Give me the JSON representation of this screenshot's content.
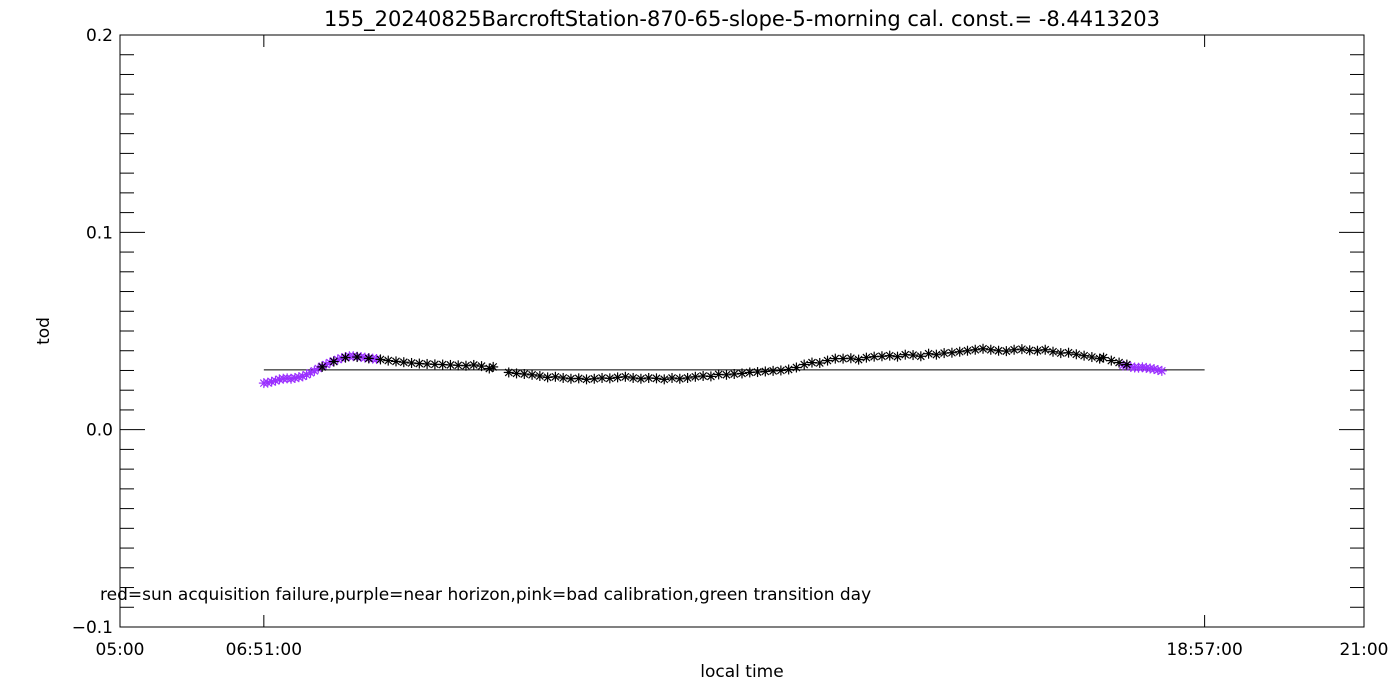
{
  "chart_data": {
    "type": "scatter",
    "title": "155_20240825BarcroftStation-870-65-slope-5-morning cal. const.= -8.4413203",
    "xlabel": "local time",
    "ylabel": "tod",
    "xlim": [
      5,
      21
    ],
    "ylim": [
      -0.1,
      0.2
    ],
    "grid": false,
    "x_ticks": [
      {
        "value": 5,
        "label": "05:00"
      },
      {
        "value": 6.85,
        "label": "06:51:00"
      },
      {
        "value": 18.95,
        "label": "18:57:00"
      },
      {
        "value": 21,
        "label": "21:00"
      }
    ],
    "y_ticks": [
      {
        "value": -0.1,
        "label": "−0.1"
      },
      {
        "value": 0.0,
        "label": "0.0"
      },
      {
        "value": 0.1,
        "label": "0.1"
      },
      {
        "value": 0.2,
        "label": "0.2"
      }
    ],
    "note": "red=sun acquisition failure,purple=near horizon,pink=bad calibration,green transition day",
    "colors": {
      "normal": "#000000",
      "near_horizon": "#9b30ff",
      "reference_line": "#000000"
    },
    "reference_line": {
      "x": [
        6.85,
        18.95
      ],
      "y": 0.0303
    },
    "series": [
      {
        "color_key": "near_horizon",
        "points": [
          [
            6.85,
            0.0236
          ],
          [
            6.9,
            0.0238
          ],
          [
            6.95,
            0.0243
          ],
          [
            7.0,
            0.0248
          ],
          [
            7.05,
            0.0255
          ],
          [
            7.1,
            0.0258
          ],
          [
            7.15,
            0.026
          ],
          [
            7.2,
            0.0258
          ],
          [
            7.25,
            0.0262
          ],
          [
            7.3,
            0.0266
          ],
          [
            7.35,
            0.027
          ],
          [
            7.4,
            0.0278
          ],
          [
            7.45,
            0.0288
          ],
          [
            7.5,
            0.0298
          ],
          [
            7.55,
            0.031
          ],
          [
            7.6,
            0.0322
          ],
          [
            7.65,
            0.033
          ],
          [
            7.7,
            0.034
          ],
          [
            7.75,
            0.0348
          ],
          [
            7.8,
            0.0356
          ],
          [
            7.85,
            0.0362
          ],
          [
            7.9,
            0.0368
          ],
          [
            7.95,
            0.0372
          ],
          [
            8.0,
            0.0372
          ],
          [
            8.05,
            0.037
          ],
          [
            8.1,
            0.0368
          ],
          [
            8.15,
            0.0365
          ],
          [
            8.2,
            0.0363
          ],
          [
            8.25,
            0.036
          ],
          [
            8.3,
            0.0358
          ],
          [
            17.9,
            0.0325
          ],
          [
            17.95,
            0.0327
          ],
          [
            18.0,
            0.0318
          ],
          [
            18.05,
            0.0315
          ],
          [
            18.1,
            0.0314
          ],
          [
            18.15,
            0.0316
          ],
          [
            18.2,
            0.0313
          ],
          [
            18.25,
            0.031
          ],
          [
            18.3,
            0.0307
          ],
          [
            18.35,
            0.0302
          ],
          [
            18.4,
            0.0298
          ]
        ]
      },
      {
        "color_key": "normal",
        "points": [
          [
            7.6,
            0.0318
          ],
          [
            7.75,
            0.0345
          ],
          [
            7.9,
            0.0365
          ],
          [
            8.05,
            0.0368
          ],
          [
            8.2,
            0.0361
          ],
          [
            8.35,
            0.0356
          ],
          [
            8.45,
            0.035
          ],
          [
            8.55,
            0.0346
          ],
          [
            8.65,
            0.0342
          ],
          [
            8.75,
            0.0338
          ],
          [
            8.85,
            0.0335
          ],
          [
            8.95,
            0.0333
          ],
          [
            9.05,
            0.0331
          ],
          [
            9.15,
            0.033
          ],
          [
            9.25,
            0.0328
          ],
          [
            9.35,
            0.0326
          ],
          [
            9.45,
            0.0324
          ],
          [
            9.55,
            0.0328
          ],
          [
            9.65,
            0.0322
          ],
          [
            9.75,
            0.031
          ],
          [
            9.8,
            0.0318
          ],
          [
            10.0,
            0.029
          ],
          [
            10.1,
            0.0285
          ],
          [
            10.2,
            0.0282
          ],
          [
            10.3,
            0.0278
          ],
          [
            10.4,
            0.0272
          ],
          [
            10.5,
            0.0265
          ],
          [
            10.6,
            0.0268
          ],
          [
            10.7,
            0.0262
          ],
          [
            10.8,
            0.0258
          ],
          [
            10.9,
            0.026
          ],
          [
            11.0,
            0.0255
          ],
          [
            11.1,
            0.0258
          ],
          [
            11.2,
            0.0262
          ],
          [
            11.3,
            0.026
          ],
          [
            11.4,
            0.0265
          ],
          [
            11.5,
            0.0268
          ],
          [
            11.6,
            0.0262
          ],
          [
            11.7,
            0.0258
          ],
          [
            11.8,
            0.0262
          ],
          [
            11.9,
            0.026
          ],
          [
            12.0,
            0.0255
          ],
          [
            12.1,
            0.0262
          ],
          [
            12.2,
            0.0258
          ],
          [
            12.3,
            0.0262
          ],
          [
            12.4,
            0.0268
          ],
          [
            12.5,
            0.0272
          ],
          [
            12.6,
            0.027
          ],
          [
            12.7,
            0.028
          ],
          [
            12.8,
            0.0278
          ],
          [
            12.9,
            0.0282
          ],
          [
            13.0,
            0.0285
          ],
          [
            13.1,
            0.029
          ],
          [
            13.2,
            0.0292
          ],
          [
            13.3,
            0.0295
          ],
          [
            13.4,
            0.0298
          ],
          [
            13.5,
            0.03
          ],
          [
            13.6,
            0.0305
          ],
          [
            13.7,
            0.0315
          ],
          [
            13.8,
            0.033
          ],
          [
            13.9,
            0.034
          ],
          [
            14.0,
            0.0338
          ],
          [
            14.1,
            0.035
          ],
          [
            14.2,
            0.036
          ],
          [
            14.3,
            0.036
          ],
          [
            14.4,
            0.0362
          ],
          [
            14.5,
            0.0355
          ],
          [
            14.6,
            0.0365
          ],
          [
            14.7,
            0.037
          ],
          [
            14.8,
            0.0372
          ],
          [
            14.9,
            0.0375
          ],
          [
            15.0,
            0.037
          ],
          [
            15.1,
            0.038
          ],
          [
            15.2,
            0.0378
          ],
          [
            15.3,
            0.0372
          ],
          [
            15.4,
            0.0385
          ],
          [
            15.5,
            0.038
          ],
          [
            15.6,
            0.0388
          ],
          [
            15.7,
            0.039
          ],
          [
            15.8,
            0.0395
          ],
          [
            15.9,
            0.04
          ],
          [
            16.0,
            0.0405
          ],
          [
            16.1,
            0.041
          ],
          [
            16.2,
            0.0405
          ],
          [
            16.3,
            0.04
          ],
          [
            16.4,
            0.0398
          ],
          [
            16.5,
            0.0405
          ],
          [
            16.6,
            0.0408
          ],
          [
            16.7,
            0.0402
          ],
          [
            16.8,
            0.04
          ],
          [
            16.9,
            0.0405
          ],
          [
            17.0,
            0.0395
          ],
          [
            17.1,
            0.0388
          ],
          [
            17.2,
            0.039
          ],
          [
            17.3,
            0.0382
          ],
          [
            17.4,
            0.0375
          ],
          [
            17.5,
            0.0368
          ],
          [
            17.6,
            0.036
          ],
          [
            17.65,
            0.0365
          ],
          [
            17.75,
            0.035
          ],
          [
            17.85,
            0.034
          ],
          [
            17.95,
            0.033
          ]
        ]
      }
    ]
  }
}
